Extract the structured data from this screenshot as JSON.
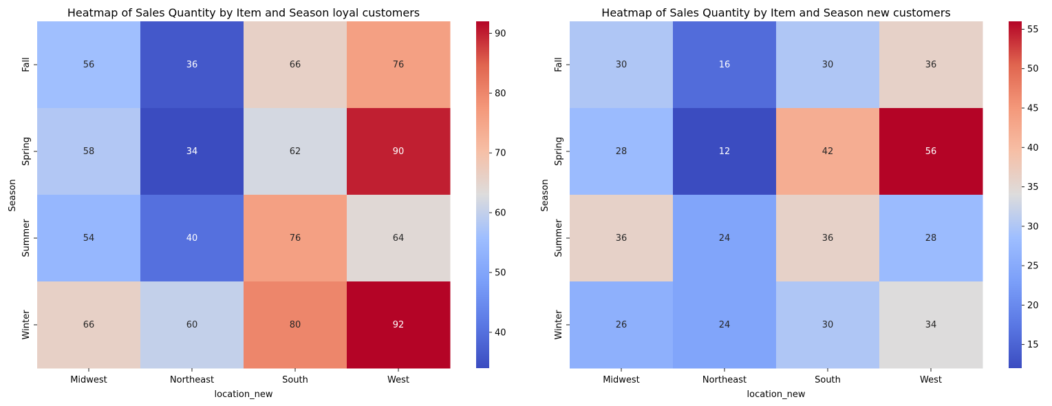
{
  "chart_data": [
    {
      "type": "heatmap",
      "title": "Heatmap of Sales Quantity by Item and Season loyal customers",
      "xlabel": "location_new",
      "ylabel": "Season",
      "x_categories": [
        "Midwest",
        "Northeast",
        "South",
        "West"
      ],
      "y_categories": [
        "Fall",
        "Spring",
        "Summer",
        "Winter"
      ],
      "values": [
        [
          56,
          36,
          66,
          76
        ],
        [
          58,
          34,
          62,
          90
        ],
        [
          54,
          40,
          76,
          64
        ],
        [
          66,
          60,
          80,
          92
        ]
      ],
      "colormap": "coolwarm",
      "color_range": [
        34,
        92
      ],
      "colorbar_ticks": [
        40,
        50,
        60,
        70,
        80,
        90
      ],
      "annotations": true
    },
    {
      "type": "heatmap",
      "title": "Heatmap of Sales Quantity by Item and Season new customers",
      "xlabel": "location_new",
      "ylabel": "Season",
      "x_categories": [
        "Midwest",
        "Northeast",
        "South",
        "West"
      ],
      "y_categories": [
        "Fall",
        "Spring",
        "Summer",
        "Winter"
      ],
      "values": [
        [
          30,
          16,
          30,
          36
        ],
        [
          28,
          12,
          42,
          56
        ],
        [
          36,
          24,
          36,
          28
        ],
        [
          26,
          24,
          30,
          34
        ]
      ],
      "colormap": "coolwarm",
      "color_range": [
        12,
        56
      ],
      "colorbar_ticks": [
        15,
        20,
        25,
        30,
        35,
        40,
        45,
        50,
        55
      ],
      "annotations": true
    }
  ]
}
